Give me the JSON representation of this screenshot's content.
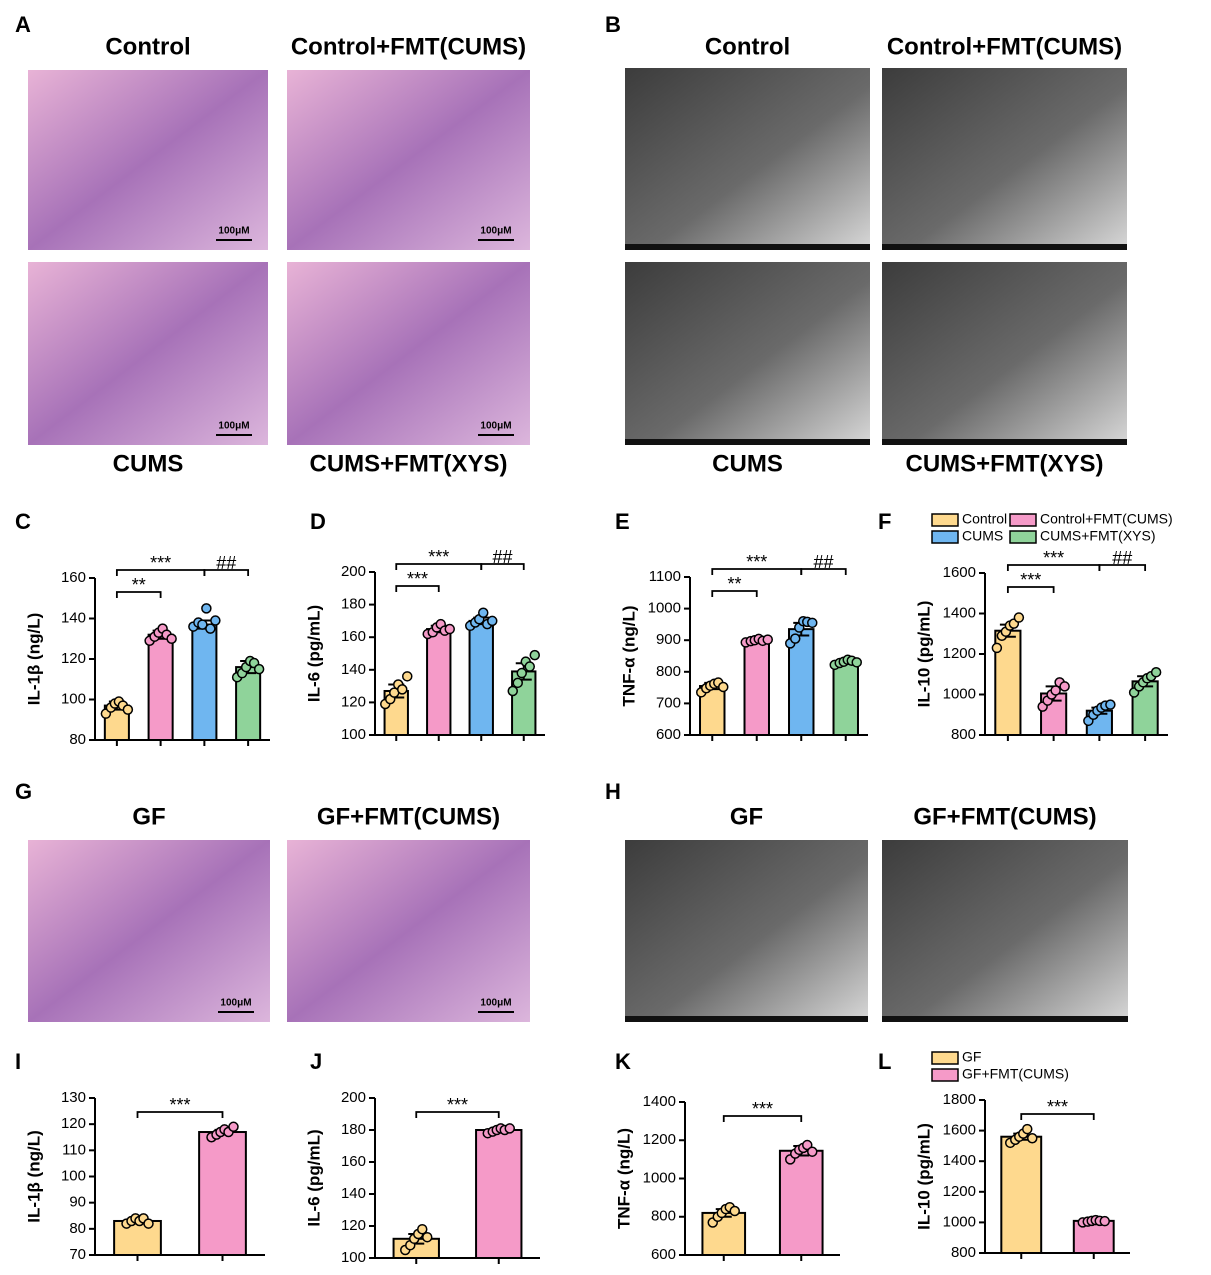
{
  "image_panels": [
    {
      "panel_label": "A",
      "kind": "he",
      "top_labels": [
        "Control",
        "Control+FMT(CUMS)"
      ],
      "bottom_labels": [
        "CUMS",
        "CUMS+FMT(XYS)"
      ],
      "scale_labels": [
        "100μM",
        "100μM",
        "100μM",
        "100μM"
      ]
    },
    {
      "panel_label": "B",
      "kind": "tem",
      "top_labels": [
        "Control",
        "Control+FMT(CUMS)"
      ],
      "bottom_labels": [
        "CUMS",
        "CUMS+FMT(XYS)"
      ]
    },
    {
      "panel_label": "G",
      "kind": "he",
      "top_labels": [
        "GF",
        "GF+FMT(CUMS)"
      ],
      "scale_labels": [
        "100μM",
        "100μM"
      ]
    },
    {
      "panel_label": "H",
      "kind": "tem",
      "top_labels": [
        "GF",
        "GF+FMT(CUMS)"
      ]
    }
  ],
  "chart_data": [
    {
      "type": "bar",
      "panel_label": "C",
      "ylabel": "IL-1β (ng/L)",
      "categories": [
        null,
        null,
        null,
        null
      ],
      "values": [
        97,
        132,
        137,
        116
      ],
      "sem": [
        2,
        2,
        2,
        3
      ],
      "points": [
        [
          93,
          96,
          98,
          99,
          97,
          95
        ],
        [
          129,
          131,
          133,
          135,
          132,
          130
        ],
        [
          136,
          138,
          137,
          145,
          135,
          139
        ],
        [
          111,
          113,
          116,
          119,
          118,
          115
        ]
      ],
      "colors": [
        "#fed98e",
        "#f59ac8",
        "#6fb6f0",
        "#8fd39a"
      ],
      "ylim": [
        80,
        160
      ],
      "yticks": [
        80,
        100,
        120,
        140,
        160
      ],
      "brackets": [
        {
          "label": "**",
          "between": [
            0,
            1
          ]
        },
        {
          "label": "***",
          "between": [
            0,
            2
          ]
        },
        {
          "label": "##",
          "between": [
            2,
            3
          ]
        }
      ]
    },
    {
      "type": "bar",
      "panel_label": "D",
      "ylabel": "IL-6 (pg/mL)",
      "categories": [
        null,
        null,
        null,
        null
      ],
      "values": [
        127,
        165,
        170,
        139
      ],
      "sem": [
        4,
        2,
        2,
        5
      ],
      "points": [
        [
          119,
          122,
          126,
          131,
          128,
          136
        ],
        [
          162,
          163,
          166,
          168,
          164,
          165
        ],
        [
          167,
          169,
          171,
          175,
          168,
          170
        ],
        [
          127,
          132,
          138,
          145,
          142,
          149
        ]
      ],
      "colors": [
        "#fed98e",
        "#f59ac8",
        "#6fb6f0",
        "#8fd39a"
      ],
      "ylim": [
        100,
        200
      ],
      "yticks": [
        100,
        120,
        140,
        160,
        180,
        200
      ],
      "brackets": [
        {
          "label": "***",
          "between": [
            0,
            1
          ]
        },
        {
          "label": "***",
          "between": [
            0,
            2
          ]
        },
        {
          "label": "##",
          "between": [
            2,
            3
          ]
        }
      ]
    },
    {
      "type": "bar",
      "panel_label": "E",
      "ylabel": "TNF-α (ng/L)",
      "categories": [
        null,
        null,
        null,
        null
      ],
      "values": [
        755,
        900,
        935,
        832
      ],
      "sem": [
        10,
        5,
        20,
        7
      ],
      "points": [
        [
          735,
          748,
          756,
          762,
          766,
          752
        ],
        [
          893,
          897,
          900,
          904,
          898,
          902
        ],
        [
          890,
          905,
          940,
          960,
          958,
          955
        ],
        [
          822,
          828,
          832,
          838,
          835,
          830
        ]
      ],
      "colors": [
        "#fed98e",
        "#f59ac8",
        "#6fb6f0",
        "#8fd39a"
      ],
      "ylim": [
        600,
        1100
      ],
      "yticks": [
        600,
        700,
        800,
        900,
        1000,
        1100
      ],
      "brackets": [
        {
          "label": "**",
          "between": [
            0,
            1
          ]
        },
        {
          "label": "***",
          "between": [
            0,
            2
          ]
        },
        {
          "label": "##",
          "between": [
            2,
            3
          ]
        }
      ]
    },
    {
      "type": "bar",
      "panel_label": "F",
      "ylabel": "IL-10 (pg/mL)",
      "categories": [
        null,
        null,
        null,
        null
      ],
      "values": [
        1315,
        1005,
        920,
        1065
      ],
      "sem": [
        30,
        35,
        15,
        25
      ],
      "points": [
        [
          1230,
          1290,
          1310,
          1340,
          1350,
          1380
        ],
        [
          940,
          970,
          1000,
          1020,
          1060,
          1040
        ],
        [
          870,
          900,
          920,
          935,
          945,
          950
        ],
        [
          1010,
          1040,
          1060,
          1080,
          1090,
          1110
        ]
      ],
      "colors": [
        "#fed98e",
        "#f59ac8",
        "#6fb6f0",
        "#8fd39a"
      ],
      "ylim": [
        800,
        1600
      ],
      "yticks": [
        800,
        1000,
        1200,
        1400,
        1600
      ],
      "legend": [
        "Control",
        "Control+FMT(CUMS)",
        "CUMS",
        "CUMS+FMT(XYS)"
      ],
      "brackets": [
        {
          "label": "***",
          "between": [
            0,
            1
          ]
        },
        {
          "label": "***",
          "between": [
            0,
            2
          ]
        },
        {
          "label": "##",
          "between": [
            2,
            3
          ]
        }
      ]
    },
    {
      "type": "bar",
      "panel_label": "I",
      "ylabel": "IL-1β (ng/L)",
      "categories": [
        null,
        null
      ],
      "values": [
        83,
        117
      ],
      "sem": [
        0.5,
        0.8
      ],
      "points": [
        [
          82,
          83,
          84,
          83,
          84,
          82
        ],
        [
          115,
          116,
          117,
          118,
          117,
          119
        ]
      ],
      "colors": [
        "#fed98e",
        "#f59ac8"
      ],
      "ylim": [
        70,
        130
      ],
      "yticks": [
        70,
        80,
        90,
        100,
        110,
        120,
        130
      ],
      "brackets": [
        {
          "label": "***",
          "between": [
            0,
            1
          ]
        }
      ]
    },
    {
      "type": "bar",
      "panel_label": "J",
      "ylabel": "IL-6 (pg/mL)",
      "categories": [
        null,
        null
      ],
      "values": [
        112,
        180
      ],
      "sem": [
        3,
        1
      ],
      "points": [
        [
          105,
          108,
          112,
          115,
          118,
          113
        ],
        [
          178,
          179,
          180,
          181,
          180,
          181
        ]
      ],
      "colors": [
        "#fed98e",
        "#f59ac8"
      ],
      "ylim": [
        100,
        200
      ],
      "yticks": [
        100,
        120,
        140,
        160,
        180,
        200
      ],
      "brackets": [
        {
          "label": "***",
          "between": [
            0,
            1
          ]
        }
      ]
    },
    {
      "type": "bar",
      "panel_label": "K",
      "ylabel": "TNF-α (ng/L)",
      "categories": [
        null,
        null
      ],
      "values": [
        820,
        1145
      ],
      "sem": [
        20,
        25
      ],
      "points": [
        [
          770,
          800,
          820,
          840,
          850,
          830
        ],
        [
          1100,
          1130,
          1150,
          1160,
          1175,
          1140
        ]
      ],
      "colors": [
        "#fed98e",
        "#f59ac8"
      ],
      "ylim": [
        600,
        1400
      ],
      "yticks": [
        600,
        800,
        1000,
        1200,
        1400
      ],
      "brackets": [
        {
          "label": "***",
          "between": [
            0,
            1
          ]
        }
      ]
    },
    {
      "type": "bar",
      "panel_label": "L",
      "ylabel": "IL-10 (pg/mL)",
      "categories": [
        null,
        null
      ],
      "values": [
        1560,
        1010
      ],
      "sem": [
        20,
        10
      ],
      "points": [
        [
          1520,
          1540,
          1560,
          1580,
          1610,
          1550
        ],
        [
          1000,
          1005,
          1010,
          1015,
          1010,
          1008
        ]
      ],
      "colors": [
        "#fed98e",
        "#f59ac8"
      ],
      "ylim": [
        800,
        1800
      ],
      "yticks": [
        800,
        1000,
        1200,
        1400,
        1600,
        1800
      ],
      "legend": [
        "GF",
        "GF+FMT(CUMS)"
      ],
      "brackets": [
        {
          "label": "***",
          "between": [
            0,
            1
          ]
        }
      ]
    }
  ]
}
